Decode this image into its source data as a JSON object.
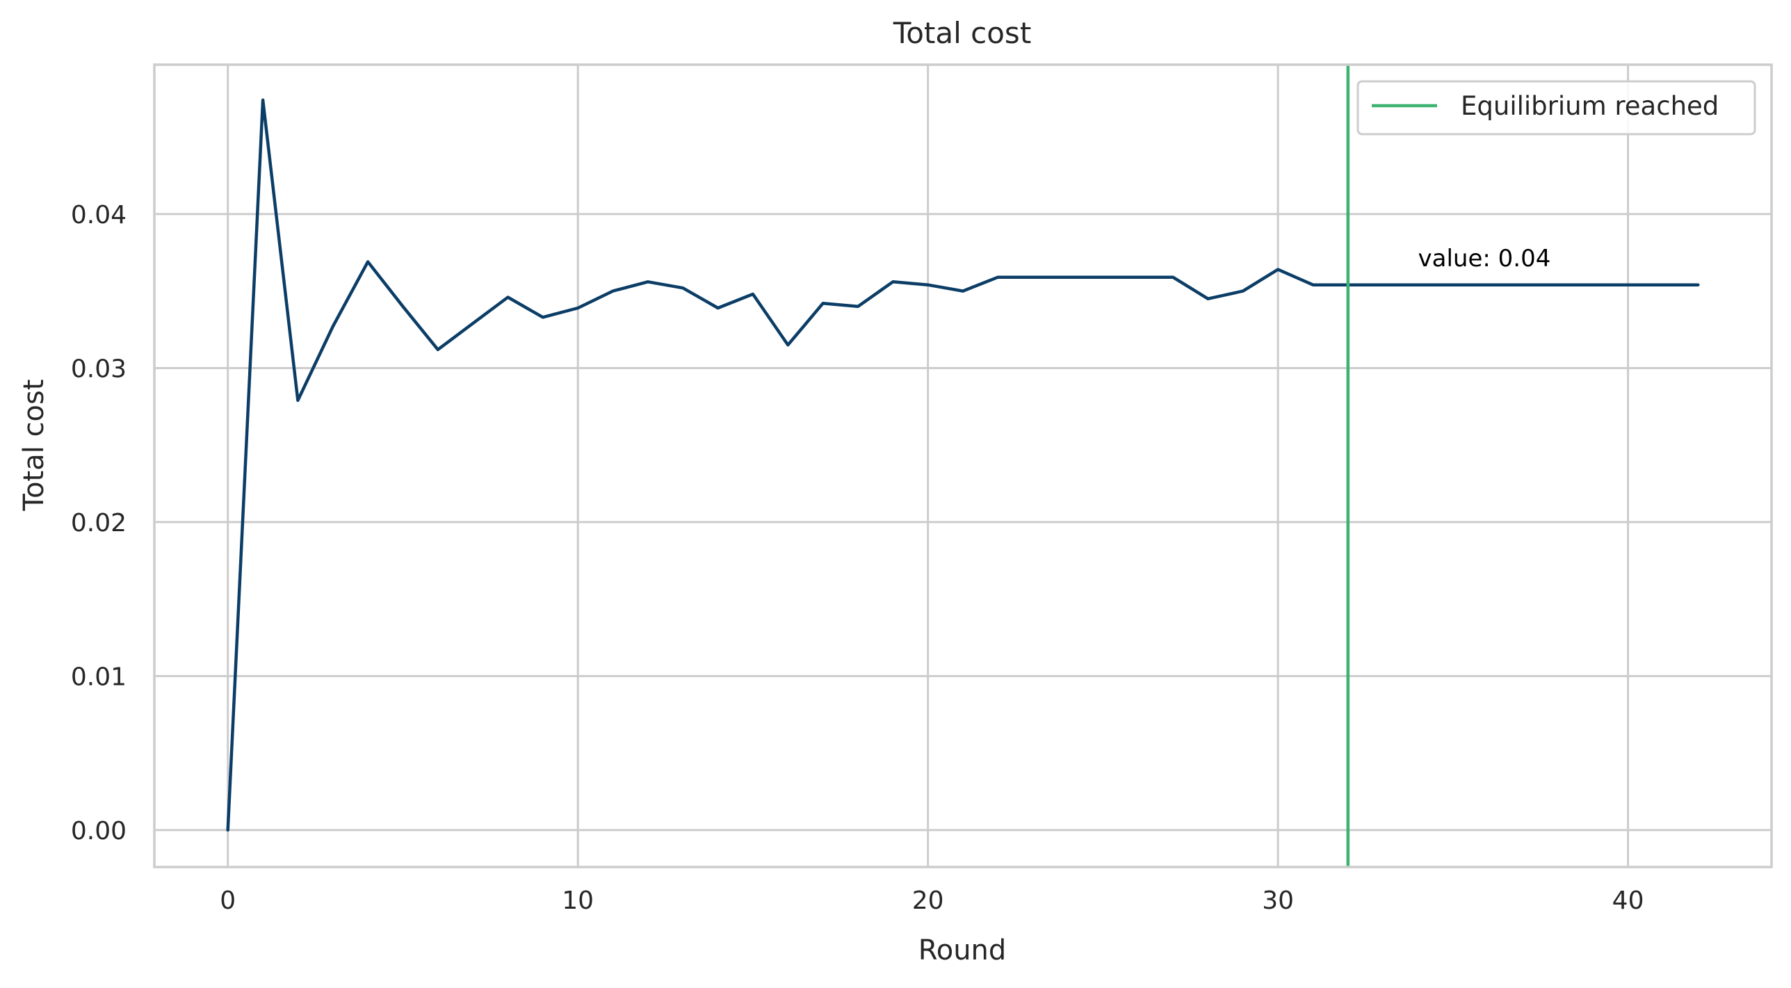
{
  "chart_data": {
    "type": "line",
    "title": "Total cost",
    "xlabel": "Round",
    "ylabel": "Total cost",
    "xlim": [
      -2.1,
      44.1
    ],
    "ylim": [
      -0.0024,
      0.0497
    ],
    "xticks": [
      0,
      10,
      20,
      30,
      40
    ],
    "xtick_labels": [
      "0",
      "10",
      "20",
      "30",
      "40"
    ],
    "yticks": [
      0.0,
      0.01,
      0.02,
      0.03,
      0.04
    ],
    "ytick_labels": [
      "0.00",
      "0.01",
      "0.02",
      "0.03",
      "0.04"
    ],
    "grid": true,
    "series": [
      {
        "color": "#0b3d66",
        "x": [
          0,
          1,
          2,
          3,
          4,
          5,
          6,
          7,
          8,
          9,
          10,
          11,
          12,
          13,
          14,
          15,
          16,
          17,
          18,
          19,
          20,
          21,
          22,
          23,
          24,
          25,
          26,
          27,
          28,
          29,
          30,
          31,
          32,
          33,
          34,
          35,
          36,
          37,
          38,
          39,
          40,
          41,
          42
        ],
        "y": [
          0.0,
          0.0474,
          0.0279,
          0.0327,
          0.0369,
          0.034,
          0.0312,
          0.0329,
          0.0346,
          0.0333,
          0.0339,
          0.035,
          0.0356,
          0.0352,
          0.0339,
          0.0348,
          0.0315,
          0.0342,
          0.034,
          0.0356,
          0.0354,
          0.035,
          0.0359,
          0.0359,
          0.0359,
          0.0359,
          0.0359,
          0.0359,
          0.0345,
          0.035,
          0.0364,
          0.0354,
          0.0354,
          0.0354,
          0.0354,
          0.0354,
          0.0354,
          0.0354,
          0.0354,
          0.0354,
          0.0354,
          0.0354,
          0.0354
        ]
      }
    ],
    "vline": {
      "x": 32,
      "color": "#3cb371",
      "label": "Equilibrium reached"
    },
    "annotation": {
      "text": "value: 0.04",
      "x": 34,
      "y": 0.0366
    },
    "legend": {
      "placement": "top-right",
      "entries": [
        "Equilibrium reached"
      ]
    }
  }
}
